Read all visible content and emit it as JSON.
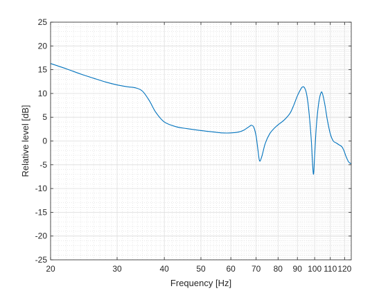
{
  "chart_data": {
    "type": "line",
    "title": "",
    "xlabel": "Frequency [Hz]",
    "ylabel": "Relative level [dB]",
    "x_scale": "log",
    "xlim": [
      20,
      125
    ],
    "ylim": [
      -25,
      25
    ],
    "x_ticks": [
      20,
      30,
      40,
      50,
      60,
      70,
      80,
      90,
      100,
      110,
      120
    ],
    "x_tick_labels": [
      "20",
      "30",
      "40",
      "50",
      "60",
      "70",
      "80",
      "90",
      "100",
      "110",
      "120"
    ],
    "y_ticks": [
      -25,
      -20,
      -15,
      -10,
      -5,
      0,
      5,
      10,
      15,
      20,
      25
    ],
    "y_tick_labels": [
      "-25",
      "-20",
      "-15",
      "-10",
      "-5",
      "0",
      "5",
      "10",
      "15",
      "20",
      "25"
    ],
    "grid": true,
    "minor_grid": true,
    "series": [
      {
        "color": "#0072BD",
        "x": [
          20,
          22,
          24,
          26,
          28,
          30,
          32,
          33.5,
          35,
          36.5,
          38,
          40,
          43,
          46,
          50,
          54,
          57,
          60,
          63,
          65,
          67,
          68,
          69,
          70,
          70.8,
          71.5,
          72.5,
          74,
          76,
          78,
          80,
          83,
          86,
          88,
          90,
          92,
          93,
          94,
          95,
          96,
          97,
          98,
          98.6,
          99.3,
          100,
          101,
          102.5,
          104,
          105,
          106.5,
          108,
          110,
          112,
          114,
          116,
          118,
          119.5,
          121,
          123,
          125
        ],
        "y": [
          16.3,
          15.2,
          14.1,
          13.2,
          12.4,
          11.8,
          11.4,
          11.2,
          10.5,
          8.5,
          6.0,
          4.0,
          3.0,
          2.6,
          2.2,
          1.9,
          1.7,
          1.7,
          1.9,
          2.3,
          3.0,
          3.3,
          2.9,
          1.0,
          -2.0,
          -4.2,
          -3.2,
          -0.5,
          1.5,
          2.6,
          3.4,
          4.4,
          5.8,
          7.5,
          9.5,
          11.0,
          11.4,
          11.2,
          10.2,
          8.0,
          4.5,
          0.0,
          -4.0,
          -7.0,
          -3.0,
          3.0,
          8.0,
          10.2,
          9.8,
          7.5,
          4.5,
          1.5,
          0.0,
          -0.4,
          -0.8,
          -1.2,
          -2.0,
          -3.2,
          -4.4,
          -4.8
        ]
      }
    ]
  }
}
